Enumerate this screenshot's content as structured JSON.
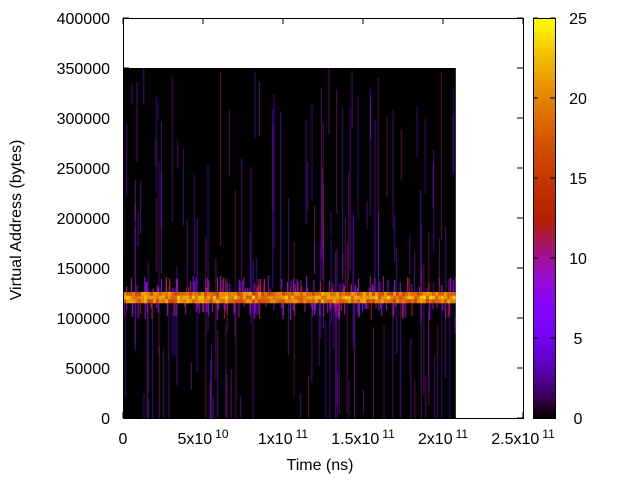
{
  "chart_data": {
    "type": "heatmap",
    "title": "",
    "xlabel": "Time (ns)",
    "ylabel": "Virtual Address (bytes)",
    "xlim": [
      0,
      250000000000
    ],
    "ylim": [
      0,
      400000
    ],
    "data_extent": {
      "x": [
        0,
        208000000000
      ],
      "y": [
        0,
        350000
      ]
    },
    "x_ticks": [
      {
        "value": 0,
        "mantissa": "0",
        "exp": ""
      },
      {
        "value": 50000000000,
        "mantissa": "5x10",
        "exp": "10"
      },
      {
        "value": 100000000000,
        "mantissa": "1x10",
        "exp": "11"
      },
      {
        "value": 150000000000,
        "mantissa": "1.5x10",
        "exp": "11"
      },
      {
        "value": 200000000000,
        "mantissa": "2x10",
        "exp": "11"
      },
      {
        "value": 250000000000,
        "mantissa": "2.5x10",
        "exp": "11"
      }
    ],
    "y_ticks": [
      "0",
      "50000",
      "100000",
      "150000",
      "200000",
      "250000",
      "300000",
      "350000",
      "400000"
    ],
    "colorbar": {
      "range": [
        0,
        25
      ],
      "ticks": [
        "0",
        "5",
        "10",
        "15",
        "20",
        "25"
      ],
      "palette": "gnuplot-pm3d",
      "background_color": "#000000"
    },
    "band": {
      "y_low": 115000,
      "y_high": 126000,
      "intensity_range": [
        16,
        22
      ]
    },
    "grid": false,
    "legend": "colorbar-right"
  }
}
